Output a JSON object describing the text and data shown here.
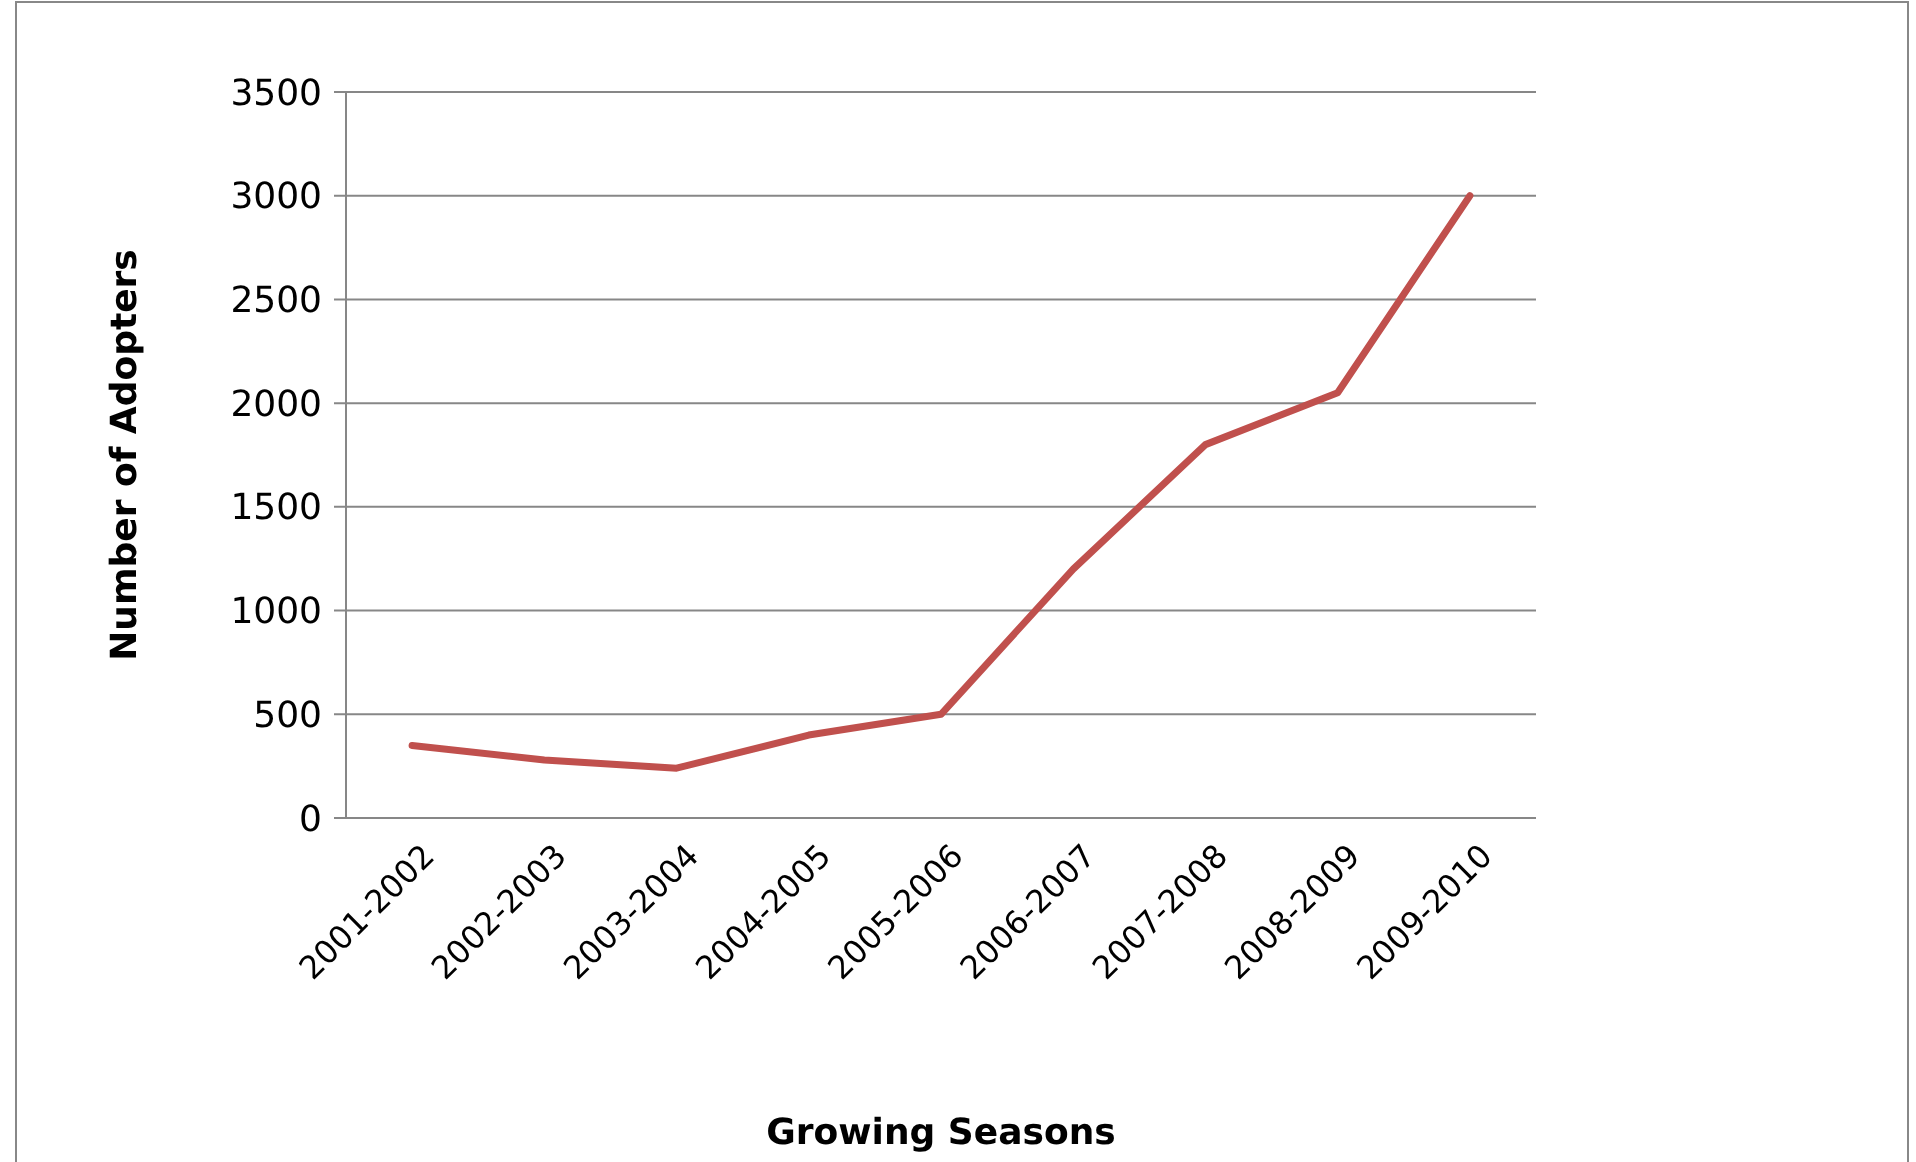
{
  "chart_data": {
    "type": "line",
    "xlabel": "Growing Seasons",
    "ylabel": "Number of Adopters",
    "categories": [
      "2001-2002",
      "2002-2003",
      "2003-2004",
      "2004-2005",
      "2005-2006",
      "2006-2007",
      "2007-2008",
      "2008-2009",
      "2009-2010"
    ],
    "series": [
      {
        "color": "#c0504d",
        "values": [
          350,
          280,
          240,
          400,
          500,
          1200,
          1800,
          2050,
          3000
        ]
      }
    ],
    "ylim": [
      0,
      3500
    ],
    "yticks": [
      0,
      500,
      1000,
      1500,
      2000,
      2500,
      3000,
      3500
    ],
    "grid": "y",
    "marker": "none"
  }
}
